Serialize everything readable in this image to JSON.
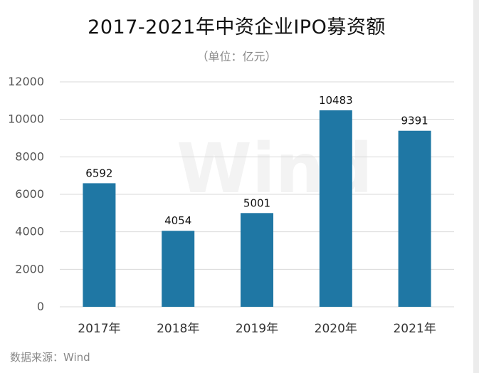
{
  "chart_data": {
    "type": "bar",
    "title": "2017-2021年中资企业IPO募资额",
    "subtitle": "（单位：亿元）",
    "categories": [
      "2017年",
      "2018年",
      "2019年",
      "2020年",
      "2021年"
    ],
    "values": [
      6592,
      4054,
      5001,
      10483,
      9391
    ],
    "data_labels": [
      "6592",
      "4054",
      "5001",
      "10483",
      "9391"
    ],
    "y_ticks": [
      "0",
      "2000",
      "4000",
      "6000",
      "8000",
      "10000",
      "12000"
    ],
    "ylim": [
      0,
      12000
    ],
    "bar_color": "#1f77a4",
    "source": "数据来源：Wind",
    "watermark": "Wind",
    "grid": "horizontal"
  }
}
